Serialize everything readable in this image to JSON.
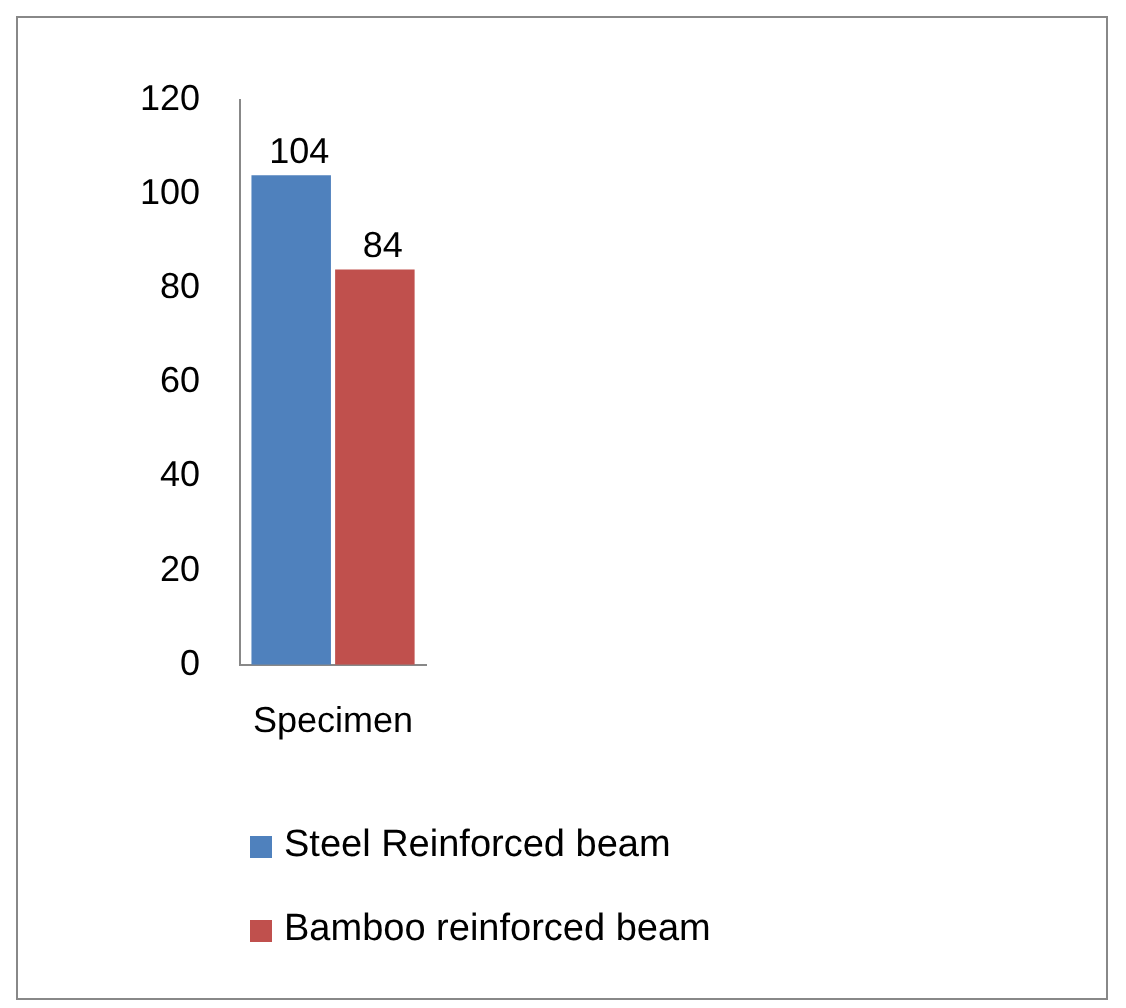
{
  "chart_data": {
    "type": "bar",
    "categories": [
      "Specimen"
    ],
    "series": [
      {
        "name": "Steel Reinforced beam",
        "color": "#4f81bd",
        "values": [
          104
        ]
      },
      {
        "name": "Bamboo reinforced beam",
        "color": "#c0504d",
        "values": [
          84
        ]
      }
    ],
    "ylim": [
      0,
      120
    ],
    "yticks": [
      0,
      20,
      40,
      60,
      80,
      100,
      120
    ],
    "grid": false,
    "legend": "bottom",
    "data_labels": true
  }
}
